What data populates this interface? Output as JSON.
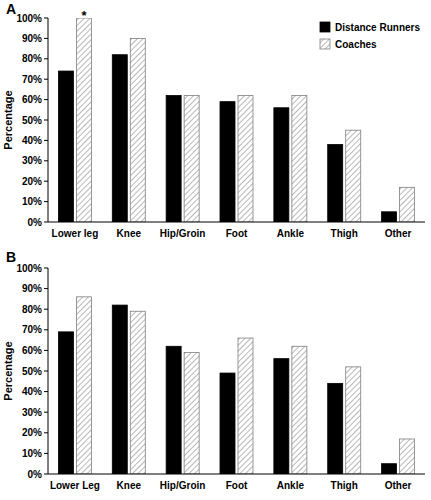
{
  "chart_data": [
    {
      "type": "bar",
      "title": "A",
      "y_label": "Percentage",
      "categories": [
        "Lower leg",
        "Knee",
        "Hip/Groin",
        "Foot",
        "Ankle",
        "Thigh",
        "Other"
      ],
      "series": [
        {
          "name": "Distance Runners",
          "color": "#000000",
          "values": [
            74,
            82,
            62,
            59,
            56,
            38,
            5
          ]
        },
        {
          "name": "Coaches",
          "color": "#a6a6a6",
          "values": [
            100,
            90,
            62,
            62,
            62,
            45,
            17
          ]
        }
      ],
      "ylim": [
        0,
        100
      ],
      "yticks": [
        {
          "value": 0,
          "label": "0%"
        },
        {
          "value": 10,
          "label": "10%"
        },
        {
          "value": 20,
          "label": "20%"
        },
        {
          "value": 30,
          "label": "30%"
        },
        {
          "value": 40,
          "label": "40%"
        },
        {
          "value": 50,
          "label": "50%"
        },
        {
          "value": 60,
          "label": "60%"
        },
        {
          "value": 70,
          "label": "70%"
        },
        {
          "value": 80,
          "label": "80%"
        },
        {
          "value": 90,
          "label": "90%"
        },
        {
          "value": 100,
          "label": "100%"
        }
      ],
      "grid": false,
      "legend": "upper right",
      "annotations": [
        {
          "text": "*",
          "category": "Lower leg",
          "series": "Coaches"
        }
      ]
    },
    {
      "type": "bar",
      "title": "B",
      "y_label": "Percentage",
      "categories": [
        "Lower Leg",
        "Knee",
        "Hip/Groin",
        "Foot",
        "Ankle",
        "Thigh",
        "Other"
      ],
      "series": [
        {
          "color": "#000000",
          "values": [
            69,
            82,
            62,
            49,
            56,
            44,
            5
          ]
        },
        {
          "color": "#a6a6a6",
          "values": [
            86,
            79,
            59,
            66,
            62,
            52,
            17
          ]
        }
      ],
      "ylim": [
        0,
        100
      ],
      "yticks": [
        {
          "value": 0,
          "label": "0%"
        },
        {
          "value": 10,
          "label": "10%"
        },
        {
          "value": 20,
          "label": "20%"
        },
        {
          "value": 30,
          "label": "30%"
        },
        {
          "value": 40,
          "label": "40%"
        },
        {
          "value": 50,
          "label": "50%"
        },
        {
          "value": 60,
          "label": "60%"
        },
        {
          "value": 70,
          "label": "70%"
        },
        {
          "value": 80,
          "label": "80%"
        },
        {
          "value": 90,
          "label": "90%"
        },
        {
          "value": 100,
          "label": "100%"
        }
      ],
      "grid": false
    }
  ]
}
